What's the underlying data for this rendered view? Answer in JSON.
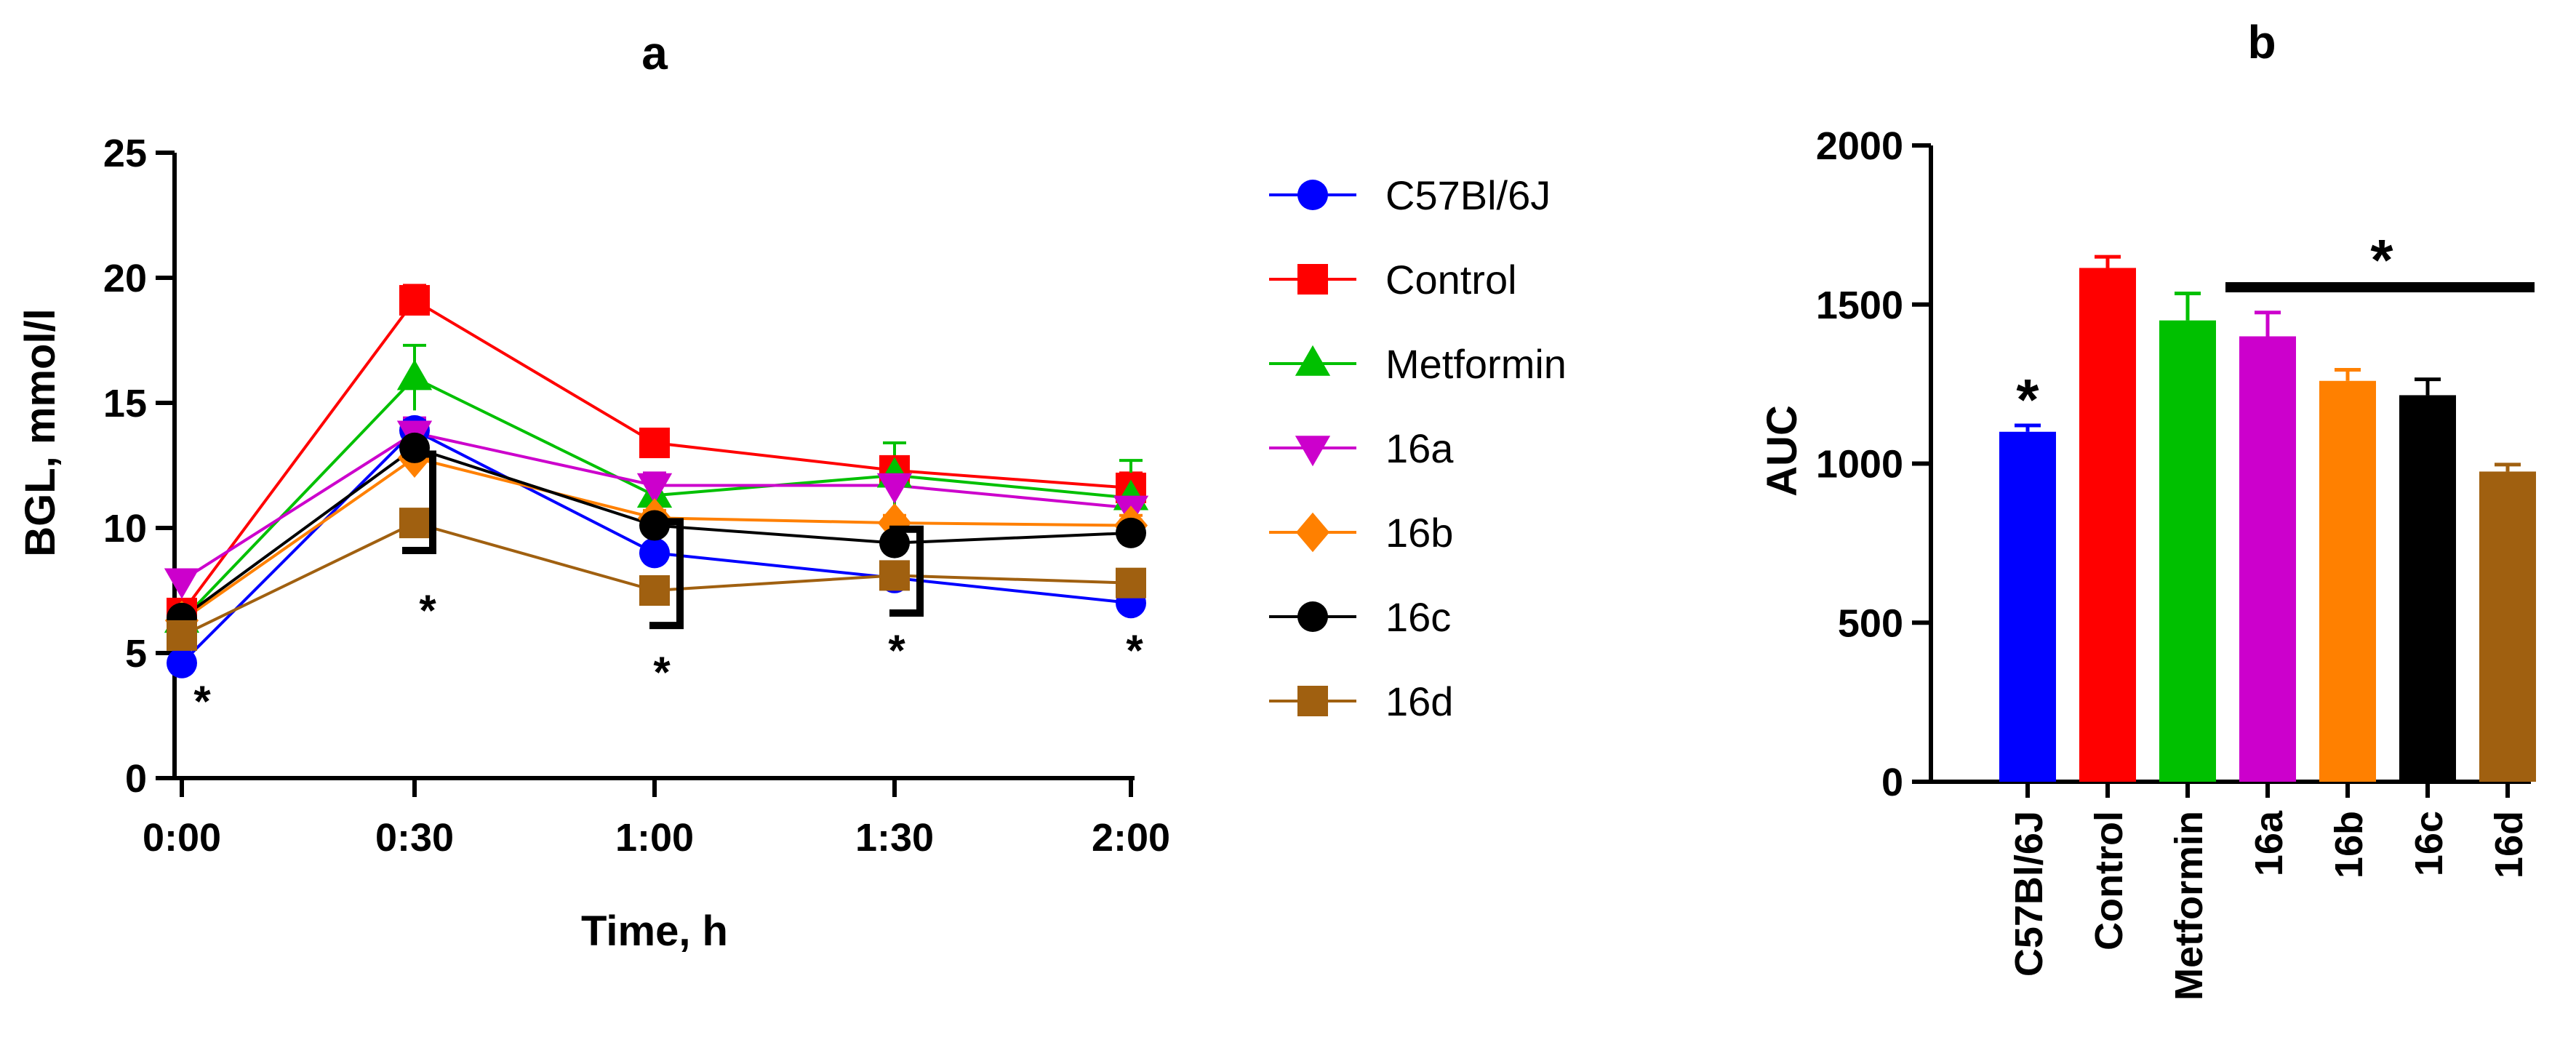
{
  "chart_data": [
    {
      "panel_label": "a",
      "type": "line",
      "xlabel": "Time, h",
      "ylabel": "BGL, mmol/l",
      "categories": [
        "0:00",
        "0:30",
        "1:00",
        "1:30",
        "2:00"
      ],
      "ylim": [
        0,
        25
      ],
      "yticks": [
        0,
        5,
        10,
        15,
        20,
        25
      ],
      "series": [
        {
          "name": "C57Bl/6J",
          "color": "#0000ff",
          "marker": "circle",
          "values": [
            4.6,
            13.9,
            9.0,
            8.0,
            7.0
          ],
          "errors": [
            0.2,
            0.4,
            0.3,
            0.2,
            0.2
          ]
        },
        {
          "name": "Control",
          "color": "#ff0000",
          "marker": "square",
          "values": [
            6.6,
            19.1,
            13.4,
            12.3,
            11.6
          ],
          "errors": [
            0.3,
            0.6,
            0.3,
            0.5,
            0.6
          ]
        },
        {
          "name": "Metformin",
          "color": "#00c000",
          "marker": "triangle-up",
          "values": [
            6.3,
            16.0,
            11.3,
            12.1,
            11.2
          ],
          "errors": [
            0.3,
            1.3,
            0.6,
            1.3,
            1.5
          ]
        },
        {
          "name": "16a",
          "color": "#cc00cc",
          "marker": "triangle-down",
          "values": [
            7.9,
            13.8,
            11.7,
            11.7,
            10.8
          ],
          "errors": [
            0.3,
            0.6,
            0.5,
            0.4,
            0.5
          ]
        },
        {
          "name": "16b",
          "color": "#ff8000",
          "marker": "diamond",
          "values": [
            6.3,
            12.8,
            10.4,
            10.2,
            10.1
          ],
          "errors": [
            0.3,
            0.5,
            0.3,
            0.3,
            0.4
          ]
        },
        {
          "name": "16c",
          "color": "#000000",
          "marker": "circle",
          "values": [
            6.4,
            13.2,
            10.1,
            9.4,
            9.8
          ],
          "errors": [
            0.3,
            0.7,
            0.3,
            0.3,
            0.5
          ]
        },
        {
          "name": "16d",
          "color": "#a06010",
          "marker": "square",
          "values": [
            5.7,
            10.2,
            7.5,
            8.1,
            7.8
          ],
          "errors": [
            0.3,
            0.4,
            0.3,
            0.3,
            0.3
          ]
        }
      ],
      "significance": [
        "*",
        "*",
        "*",
        "*",
        "*"
      ]
    },
    {
      "panel_label": "b",
      "type": "bar",
      "ylabel": "AUC",
      "ylim": [
        0,
        2000
      ],
      "yticks": [
        0,
        500,
        1000,
        1500,
        2000
      ],
      "categories": [
        "C57Bl/6J",
        "Control",
        "Metformin",
        "16a",
        "16b",
        "16c",
        "16d"
      ],
      "values": [
        1100,
        1615,
        1450,
        1400,
        1260,
        1215,
        975
      ],
      "errors": [
        20,
        35,
        85,
        75,
        35,
        50,
        22
      ],
      "colors": [
        "#0000ff",
        "#ff0000",
        "#00c000",
        "#cc00cc",
        "#ff8000",
        "#000000",
        "#a06010"
      ],
      "significance_single": "*",
      "significance_group": "*"
    }
  ]
}
